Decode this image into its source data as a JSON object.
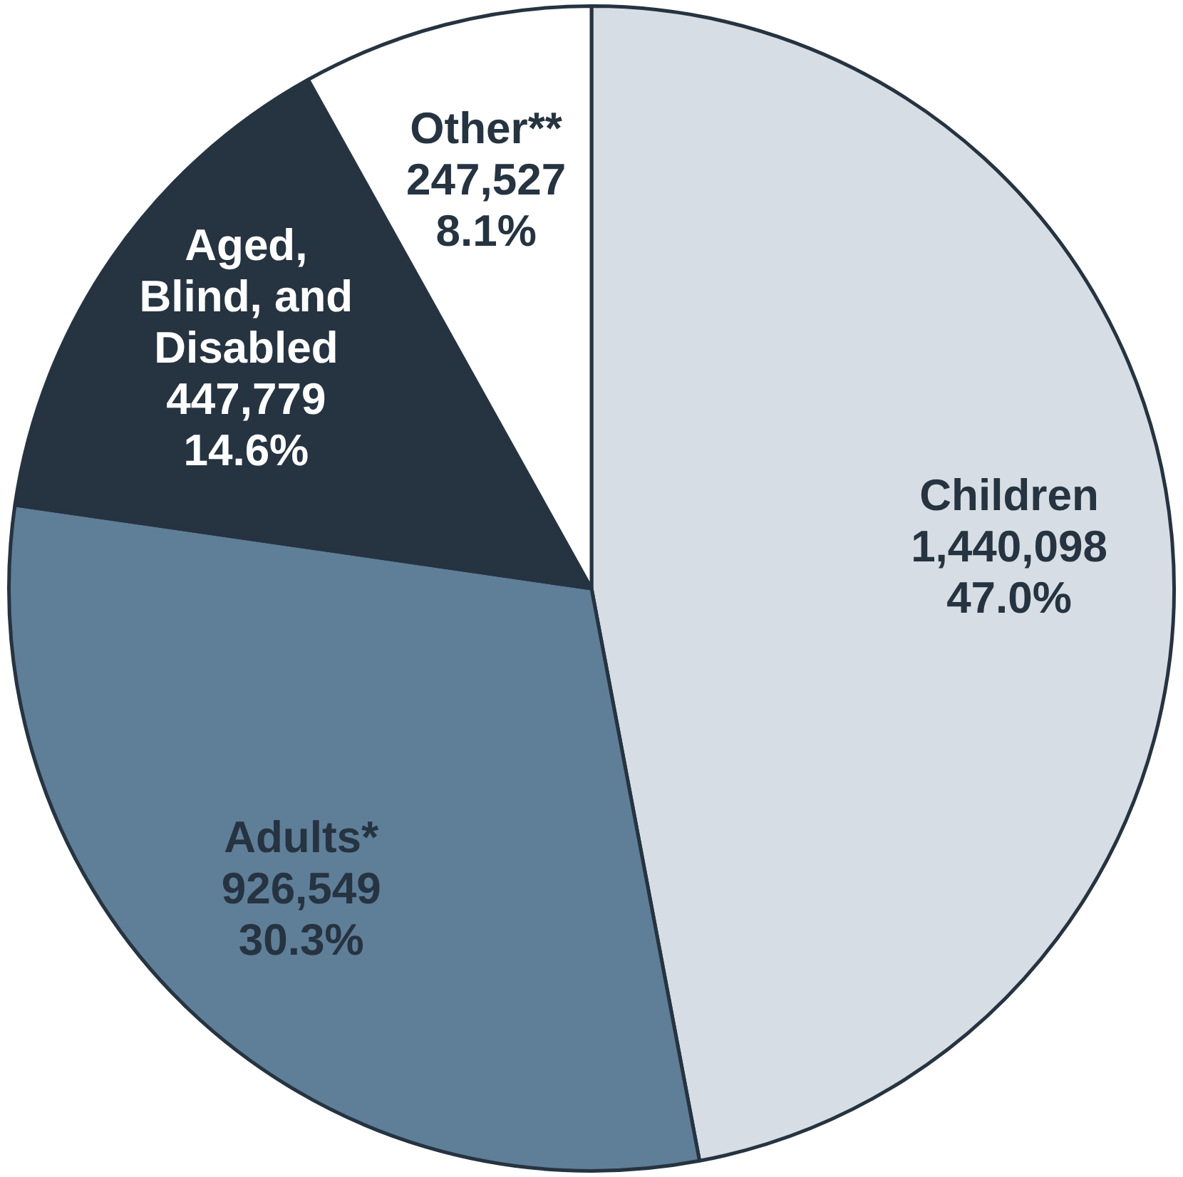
{
  "chart_data": {
    "type": "pie",
    "categories": [
      "Children",
      "Adults*",
      "Aged, Blind, and Disabled",
      "Other**"
    ],
    "values": [
      1440098,
      926549,
      447779,
      247527
    ],
    "value_labels": [
      "1,440,098\n47.0%",
      "926,549\n30.3%",
      "447,779\n14.6%",
      "247,527\n8.1%"
    ],
    "colors": [
      "#d6dde4",
      "#5f7e98",
      "#263340",
      "#ffffff"
    ],
    "legend": false
  }
}
